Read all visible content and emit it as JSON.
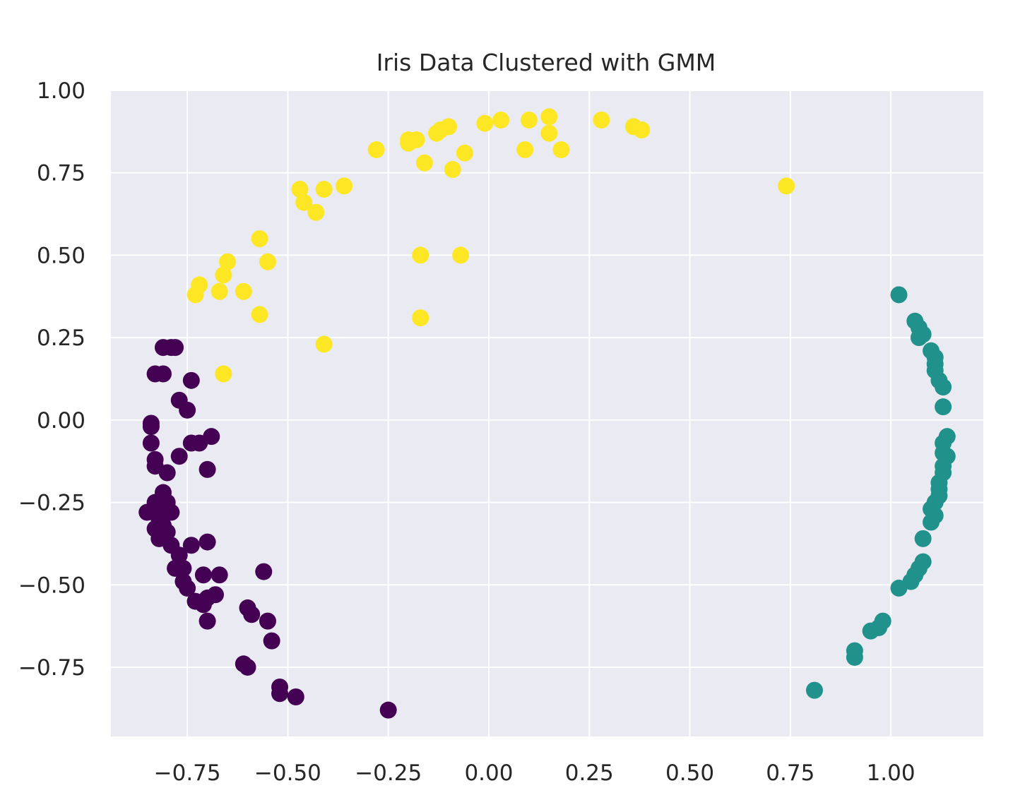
{
  "chart_data": {
    "type": "scatter",
    "title": "Iris Data Clustered with GMM",
    "xlabel": "",
    "ylabel": "",
    "xlim": [
      -0.94,
      1.23
    ],
    "ylim": [
      -0.96,
      1.0
    ],
    "x_ticks": [
      -0.75,
      -0.5,
      -0.25,
      0.0,
      0.25,
      0.5,
      0.75,
      1.0
    ],
    "x_tick_labels": [
      "−0.75",
      "−0.50",
      "−0.25",
      "0.00",
      "0.25",
      "0.50",
      "0.75",
      "1.00"
    ],
    "y_ticks": [
      1.0,
      0.75,
      0.5,
      0.25,
      0.0,
      -0.25,
      -0.5,
      -0.75
    ],
    "y_tick_labels": [
      "1.00",
      "0.75",
      "0.50",
      "0.25",
      "0.00",
      "−0.25",
      "−0.50",
      "−0.75"
    ],
    "grid": true,
    "legend": "none",
    "colors": {
      "background": "#eaeaf2",
      "grid": "#ffffff",
      "cluster_0": "#440154",
      "cluster_1": "#21918c",
      "cluster_2": "#fde725"
    },
    "series": [
      {
        "color_key": "cluster_0",
        "points": [
          [
            -0.79,
            0.22
          ],
          [
            -0.81,
            0.22
          ],
          [
            -0.78,
            0.22
          ],
          [
            -0.83,
            0.14
          ],
          [
            -0.81,
            0.14
          ],
          [
            -0.74,
            0.12
          ],
          [
            -0.77,
            0.06
          ],
          [
            -0.75,
            0.03
          ],
          [
            -0.84,
            -0.01
          ],
          [
            -0.84,
            -0.02
          ],
          [
            -0.69,
            -0.05
          ],
          [
            -0.72,
            -0.07
          ],
          [
            -0.74,
            -0.07
          ],
          [
            -0.84,
            -0.07
          ],
          [
            -0.77,
            -0.11
          ],
          [
            -0.83,
            -0.12
          ],
          [
            -0.83,
            -0.14
          ],
          [
            -0.7,
            -0.15
          ],
          [
            -0.8,
            -0.16
          ],
          [
            -0.81,
            -0.22
          ],
          [
            -0.8,
            -0.25
          ],
          [
            -0.83,
            -0.25
          ],
          [
            -0.82,
            -0.27
          ],
          [
            -0.85,
            -0.28
          ],
          [
            -0.79,
            -0.28
          ],
          [
            -0.82,
            -0.3
          ],
          [
            -0.81,
            -0.32
          ],
          [
            -0.83,
            -0.33
          ],
          [
            -0.8,
            -0.34
          ],
          [
            -0.82,
            -0.36
          ],
          [
            -0.7,
            -0.37
          ],
          [
            -0.74,
            -0.38
          ],
          [
            -0.79,
            -0.38
          ],
          [
            -0.77,
            -0.41
          ],
          [
            -0.76,
            -0.45
          ],
          [
            -0.78,
            -0.45
          ],
          [
            -0.56,
            -0.46
          ],
          [
            -0.71,
            -0.47
          ],
          [
            -0.67,
            -0.47
          ],
          [
            -0.76,
            -0.49
          ],
          [
            -0.75,
            -0.51
          ],
          [
            -0.68,
            -0.53
          ],
          [
            -0.73,
            -0.55
          ],
          [
            -0.71,
            -0.56
          ],
          [
            -0.7,
            -0.54
          ],
          [
            -0.6,
            -0.57
          ],
          [
            -0.59,
            -0.59
          ],
          [
            -0.7,
            -0.61
          ],
          [
            -0.55,
            -0.61
          ],
          [
            -0.54,
            -0.67
          ],
          [
            -0.61,
            -0.74
          ],
          [
            -0.6,
            -0.75
          ],
          [
            -0.52,
            -0.81
          ],
          [
            -0.52,
            -0.83
          ],
          [
            -0.48,
            -0.84
          ],
          [
            -0.25,
            -0.88
          ]
        ]
      },
      {
        "color_key": "cluster_1",
        "points": [
          [
            1.02,
            0.38
          ],
          [
            1.06,
            0.3
          ],
          [
            1.07,
            0.28
          ],
          [
            1.08,
            0.26
          ],
          [
            1.07,
            0.25
          ],
          [
            1.1,
            0.21
          ],
          [
            1.11,
            0.19
          ],
          [
            1.11,
            0.17
          ],
          [
            1.11,
            0.15
          ],
          [
            1.12,
            0.12
          ],
          [
            1.13,
            0.1
          ],
          [
            1.13,
            0.04
          ],
          [
            1.14,
            -0.05
          ],
          [
            1.13,
            -0.07
          ],
          [
            1.13,
            -0.1
          ],
          [
            1.14,
            -0.11
          ],
          [
            1.13,
            -0.14
          ],
          [
            1.13,
            -0.16
          ],
          [
            1.12,
            -0.19
          ],
          [
            1.12,
            -0.21
          ],
          [
            1.12,
            -0.23
          ],
          [
            1.11,
            -0.25
          ],
          [
            1.1,
            -0.27
          ],
          [
            1.11,
            -0.29
          ],
          [
            1.1,
            -0.31
          ],
          [
            1.08,
            -0.36
          ],
          [
            1.08,
            -0.43
          ],
          [
            1.07,
            -0.45
          ],
          [
            1.06,
            -0.47
          ],
          [
            1.05,
            -0.49
          ],
          [
            1.02,
            -0.51
          ],
          [
            0.98,
            -0.61
          ],
          [
            0.97,
            -0.63
          ],
          [
            0.95,
            -0.64
          ],
          [
            0.91,
            -0.7
          ],
          [
            0.91,
            -0.72
          ],
          [
            0.81,
            -0.82
          ]
        ]
      },
      {
        "color_key": "cluster_2",
        "points": [
          [
            0.15,
            0.92
          ],
          [
            0.28,
            0.91
          ],
          [
            0.03,
            0.91
          ],
          [
            0.1,
            0.91
          ],
          [
            -0.01,
            0.9
          ],
          [
            0.36,
            0.89
          ],
          [
            -0.1,
            0.89
          ],
          [
            -0.12,
            0.88
          ],
          [
            0.38,
            0.88
          ],
          [
            -0.13,
            0.87
          ],
          [
            0.15,
            0.87
          ],
          [
            -0.2,
            0.85
          ],
          [
            -0.18,
            0.85
          ],
          [
            -0.2,
            0.84
          ],
          [
            -0.28,
            0.82
          ],
          [
            0.09,
            0.82
          ],
          [
            0.18,
            0.82
          ],
          [
            -0.06,
            0.81
          ],
          [
            -0.16,
            0.78
          ],
          [
            -0.09,
            0.76
          ],
          [
            0.74,
            0.71
          ],
          [
            -0.36,
            0.71
          ],
          [
            -0.41,
            0.7
          ],
          [
            -0.47,
            0.7
          ],
          [
            -0.46,
            0.66
          ],
          [
            -0.43,
            0.63
          ],
          [
            -0.57,
            0.55
          ],
          [
            -0.07,
            0.5
          ],
          [
            -0.17,
            0.5
          ],
          [
            -0.55,
            0.48
          ],
          [
            -0.65,
            0.48
          ],
          [
            -0.66,
            0.44
          ],
          [
            -0.72,
            0.41
          ],
          [
            -0.73,
            0.38
          ],
          [
            -0.67,
            0.39
          ],
          [
            -0.61,
            0.39
          ],
          [
            -0.57,
            0.32
          ],
          [
            -0.17,
            0.31
          ],
          [
            -0.41,
            0.23
          ],
          [
            -0.66,
            0.14
          ]
        ]
      }
    ]
  }
}
